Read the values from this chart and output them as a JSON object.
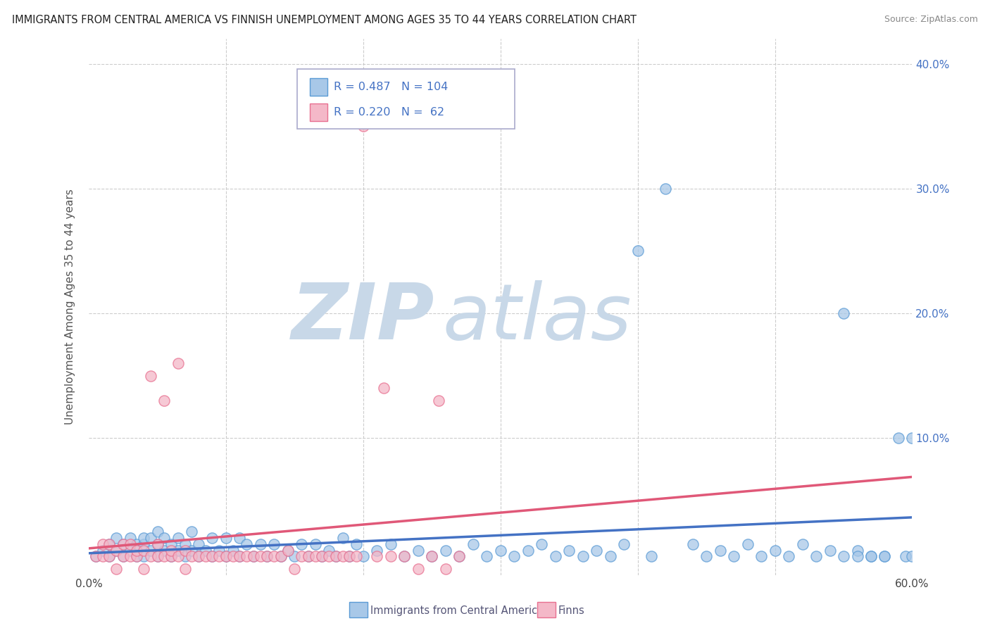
{
  "title": "IMMIGRANTS FROM CENTRAL AMERICA VS FINNISH UNEMPLOYMENT AMONG AGES 35 TO 44 YEARS CORRELATION CHART",
  "source": "Source: ZipAtlas.com",
  "ylabel": "Unemployment Among Ages 35 to 44 years",
  "xlim": [
    0,
    0.6
  ],
  "ylim": [
    -0.01,
    0.42
  ],
  "ytick_vals": [
    0.0,
    0.1,
    0.2,
    0.3,
    0.4
  ],
  "ytick_labels": [
    "",
    "10.0%",
    "20.0%",
    "30.0%",
    "40.0%"
  ],
  "xtick_vals": [
    0.0,
    0.1,
    0.2,
    0.3,
    0.4,
    0.5,
    0.6
  ],
  "xtick_labels": [
    "0.0%",
    "",
    "",
    "",
    "",
    "",
    "60.0%"
  ],
  "legend_r1": "R = 0.487",
  "legend_n1": "N = 104",
  "legend_r2": "R = 0.220",
  "legend_n2": "N =  62",
  "blue_color": "#a8c8e8",
  "blue_edge_color": "#5b9bd5",
  "blue_line_color": "#4472c4",
  "pink_color": "#f4b8c8",
  "pink_edge_color": "#e87090",
  "pink_line_color": "#e05878",
  "legend_text_color": "#4472c4",
  "bottom_legend_text_color": "#555577",
  "watermark_zip_color": "#c8d8e8",
  "watermark_atlas_color": "#c8d8e8",
  "background_color": "#ffffff",
  "grid_color": "#cccccc",
  "blue_x": [
    0.005,
    0.01,
    0.015,
    0.015,
    0.02,
    0.02,
    0.025,
    0.025,
    0.03,
    0.03,
    0.035,
    0.035,
    0.04,
    0.04,
    0.04,
    0.045,
    0.045,
    0.05,
    0.05,
    0.05,
    0.055,
    0.055,
    0.06,
    0.06,
    0.065,
    0.065,
    0.07,
    0.07,
    0.075,
    0.075,
    0.08,
    0.08,
    0.085,
    0.09,
    0.09,
    0.095,
    0.1,
    0.1,
    0.105,
    0.11,
    0.11,
    0.115,
    0.12,
    0.125,
    0.13,
    0.135,
    0.14,
    0.145,
    0.15,
    0.155,
    0.16,
    0.165,
    0.17,
    0.175,
    0.18,
    0.185,
    0.19,
    0.195,
    0.2,
    0.21,
    0.22,
    0.23,
    0.24,
    0.25,
    0.26,
    0.27,
    0.28,
    0.29,
    0.3,
    0.31,
    0.32,
    0.33,
    0.34,
    0.35,
    0.36,
    0.37,
    0.38,
    0.39,
    0.4,
    0.41,
    0.42,
    0.44,
    0.45,
    0.46,
    0.47,
    0.48,
    0.49,
    0.5,
    0.51,
    0.52,
    0.53,
    0.54,
    0.55,
    0.56,
    0.57,
    0.58,
    0.59,
    0.595,
    0.6,
    0.6,
    0.58,
    0.57,
    0.56,
    0.55
  ],
  "blue_y": [
    0.005,
    0.01,
    0.005,
    0.015,
    0.01,
    0.02,
    0.005,
    0.015,
    0.01,
    0.02,
    0.005,
    0.015,
    0.005,
    0.015,
    0.02,
    0.01,
    0.02,
    0.005,
    0.015,
    0.025,
    0.01,
    0.02,
    0.005,
    0.015,
    0.01,
    0.02,
    0.005,
    0.015,
    0.01,
    0.025,
    0.005,
    0.015,
    0.01,
    0.005,
    0.02,
    0.01,
    0.005,
    0.02,
    0.01,
    0.005,
    0.02,
    0.015,
    0.005,
    0.015,
    0.005,
    0.015,
    0.005,
    0.01,
    0.005,
    0.015,
    0.005,
    0.015,
    0.005,
    0.01,
    0.005,
    0.02,
    0.005,
    0.015,
    0.005,
    0.01,
    0.015,
    0.005,
    0.01,
    0.005,
    0.01,
    0.005,
    0.015,
    0.005,
    0.01,
    0.005,
    0.01,
    0.015,
    0.005,
    0.01,
    0.005,
    0.01,
    0.005,
    0.015,
    0.25,
    0.005,
    0.3,
    0.015,
    0.005,
    0.01,
    0.005,
    0.015,
    0.005,
    0.01,
    0.005,
    0.015,
    0.005,
    0.01,
    0.005,
    0.01,
    0.005,
    0.005,
    0.1,
    0.005,
    0.1,
    0.005,
    0.005,
    0.005,
    0.005,
    0.2
  ],
  "pink_x": [
    0.005,
    0.01,
    0.01,
    0.015,
    0.015,
    0.02,
    0.02,
    0.025,
    0.025,
    0.03,
    0.03,
    0.035,
    0.035,
    0.04,
    0.04,
    0.045,
    0.045,
    0.05,
    0.05,
    0.055,
    0.055,
    0.06,
    0.06,
    0.065,
    0.065,
    0.07,
    0.07,
    0.075,
    0.08,
    0.085,
    0.09,
    0.095,
    0.1,
    0.105,
    0.11,
    0.115,
    0.12,
    0.125,
    0.13,
    0.135,
    0.14,
    0.145,
    0.15,
    0.155,
    0.16,
    0.165,
    0.17,
    0.175,
    0.18,
    0.185,
    0.19,
    0.195,
    0.2,
    0.21,
    0.215,
    0.22,
    0.23,
    0.24,
    0.25,
    0.255,
    0.26,
    0.27
  ],
  "pink_y": [
    0.005,
    0.005,
    0.015,
    0.005,
    0.015,
    -0.005,
    0.01,
    0.005,
    0.015,
    0.005,
    0.015,
    0.005,
    0.01,
    -0.005,
    0.01,
    0.005,
    0.15,
    0.005,
    0.015,
    0.005,
    0.13,
    0.005,
    0.01,
    0.005,
    0.16,
    -0.005,
    0.01,
    0.005,
    0.005,
    0.005,
    0.005,
    0.005,
    0.005,
    0.005,
    0.005,
    0.005,
    0.005,
    0.005,
    0.005,
    0.005,
    0.005,
    0.01,
    -0.005,
    0.005,
    0.005,
    0.005,
    0.005,
    0.005,
    0.005,
    0.005,
    0.005,
    0.005,
    0.35,
    0.005,
    0.14,
    0.005,
    0.005,
    -0.005,
    0.005,
    0.13,
    -0.005,
    0.005
  ]
}
